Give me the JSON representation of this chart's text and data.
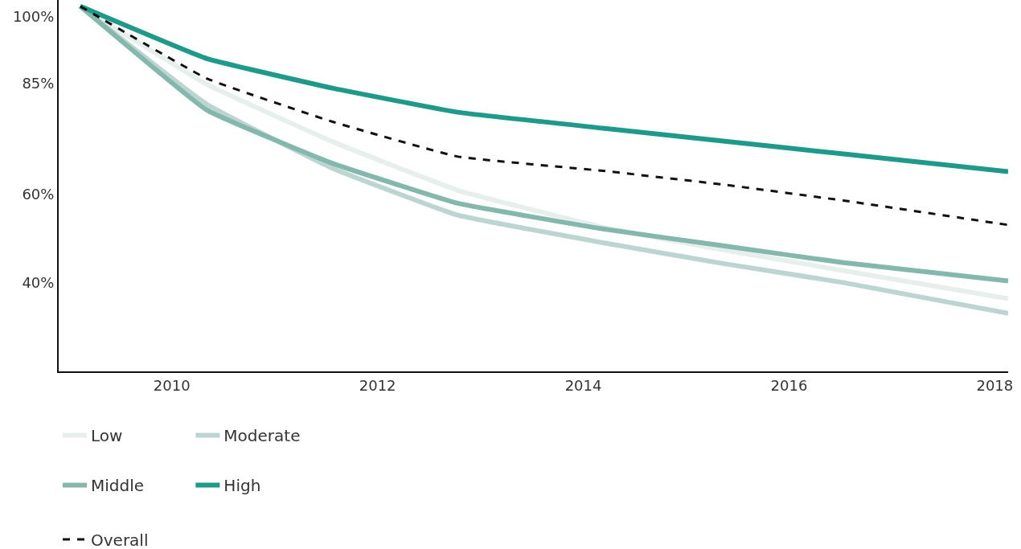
{
  "chart_data": {
    "type": "line",
    "x": [
      2009.11,
      2010.34,
      2011.57,
      2012.78,
      2014.19,
      2015.36,
      2016.53,
      2018.13
    ],
    "series": [
      {
        "name": "Low",
        "color": "#e6efec",
        "values": [
          102.3,
          84.7,
          71.7,
          60.8,
          52.5,
          47.4,
          42.7,
          36.4
        ]
      },
      {
        "name": "Moderate",
        "color": "#bcd5d1",
        "values": [
          102.3,
          80.2,
          65.7,
          55.2,
          49.0,
          44.3,
          40.0,
          33.1
        ]
      },
      {
        "name": "Middle",
        "color": "#84b8ad",
        "values": [
          102.3,
          78.9,
          66.8,
          57.9,
          52.1,
          48.3,
          44.5,
          40.4
        ]
      },
      {
        "name": "High",
        "color": "#1f9a8a",
        "values": [
          102.3,
          90.5,
          83.8,
          78.4,
          74.8,
          71.9,
          69.0,
          65.0
        ]
      },
      {
        "name": "Overall",
        "color": "#111111",
        "line_style": "dashed",
        "values": [
          102.3,
          86.0,
          76.2,
          68.4,
          65.2,
          62.1,
          58.5,
          53.0
        ]
      }
    ],
    "xlim": [
      2008.9,
      2018.13
    ],
    "xticks": [
      2010,
      2012,
      2014,
      2016,
      2018
    ],
    "ylim": [
      20,
      103.7
    ],
    "yticks": [
      {
        "value": 100,
        "label": "100%"
      },
      {
        "value": 85,
        "label": "85%"
      },
      {
        "value": 60,
        "label": "60%"
      },
      {
        "value": 40,
        "label": "40%"
      }
    ],
    "grid": false,
    "legend": "bottom",
    "marker": "none",
    "line_style": "solid"
  }
}
